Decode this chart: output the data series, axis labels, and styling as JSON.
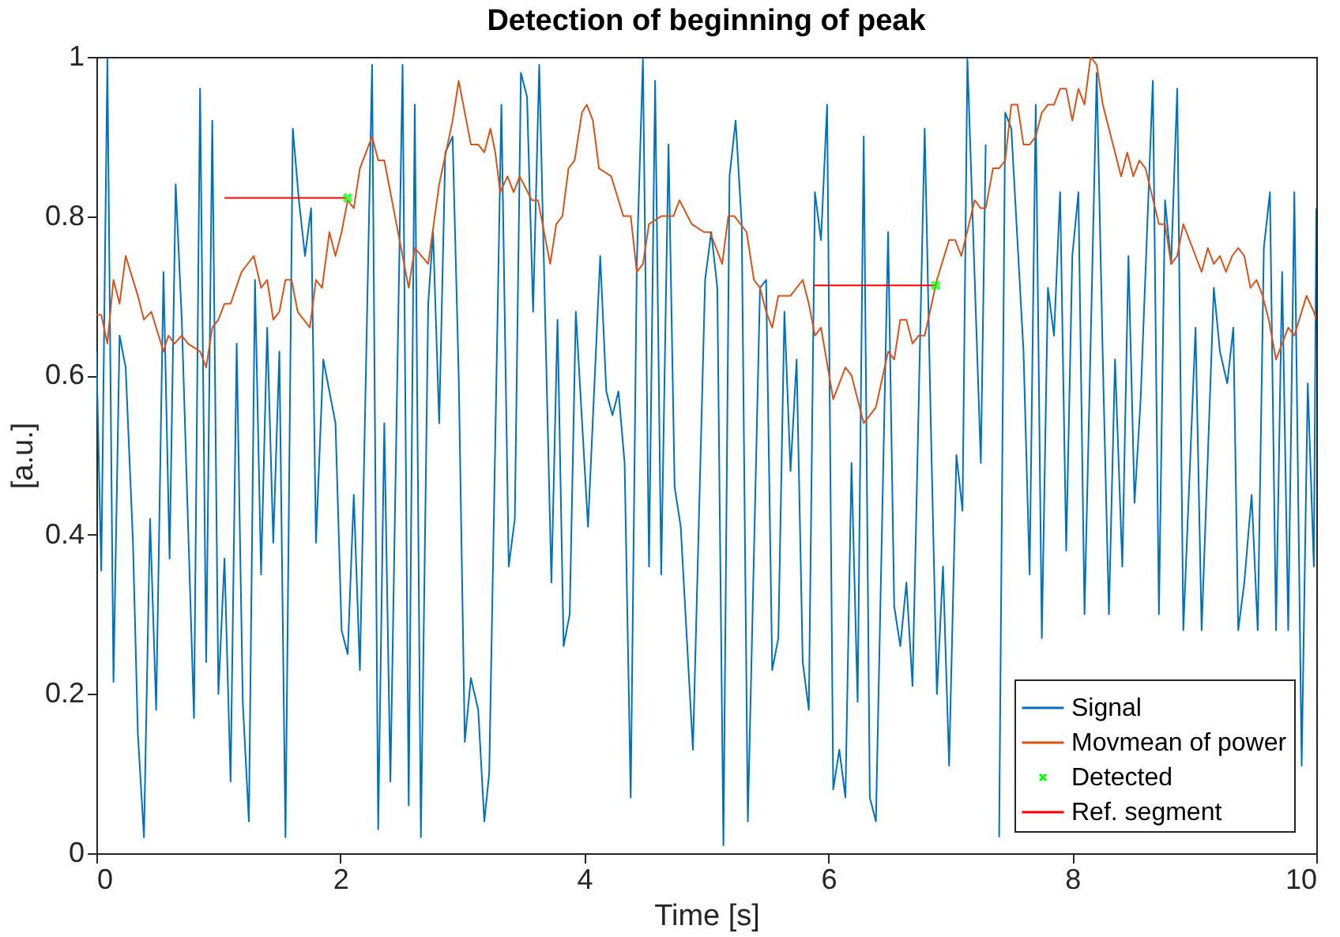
{
  "chart_data": {
    "type": "line",
    "title": "Detection of beginning of peak",
    "xlabel": "Time [s]",
    "ylabel": "[a.u.]",
    "xlim": [
      0,
      10
    ],
    "ylim": [
      0,
      1
    ],
    "xticks": [
      0,
      2,
      4,
      6,
      8,
      10
    ],
    "yticks": [
      0,
      0.2,
      0.4,
      0.6,
      0.8,
      1
    ],
    "grid": false,
    "legend": "bottom right",
    "series": [
      {
        "name": "Signal",
        "color": "#0072bd",
        "x": [
          0,
          0.04,
          0.09,
          0.14,
          0.19,
          0.24,
          0.3,
          0.34,
          0.39,
          0.44,
          0.49,
          0.55,
          0.6,
          0.65,
          0.7,
          0.8,
          0.85,
          0.9,
          0.95,
          1.0,
          1.05,
          1.1,
          1.15,
          1.2,
          1.25,
          1.3,
          1.35,
          1.4,
          1.45,
          1.5,
          1.55,
          1.61,
          1.66,
          1.71,
          1.76,
          1.8,
          1.86,
          1.96,
          2.01,
          2.06,
          2.11,
          2.16,
          2.26,
          2.31,
          2.36,
          2.41,
          2.51,
          2.56,
          2.61,
          2.66,
          2.72,
          2.76,
          2.81,
          2.86,
          2.92,
          2.97,
          3.02,
          3.07,
          3.13,
          3.18,
          3.22,
          3.32,
          3.38,
          3.43,
          3.48,
          3.53,
          3.58,
          3.63,
          3.73,
          3.78,
          3.83,
          3.88,
          3.93,
          4.03,
          4.13,
          4.18,
          4.23,
          4.28,
          4.33,
          4.38,
          4.43,
          4.48,
          4.53,
          4.58,
          4.63,
          4.69,
          4.74,
          4.79,
          4.89,
          4.99,
          5.04,
          5.09,
          5.14,
          5.19,
          5.24,
          5.29,
          5.34,
          5.44,
          5.49,
          5.54,
          5.59,
          5.64,
          5.69,
          5.74,
          5.79,
          5.84,
          5.89,
          5.94,
          5.99,
          6.04,
          6.09,
          6.14,
          6.19,
          6.24,
          6.29,
          6.34,
          6.39,
          6.49,
          6.54,
          6.59,
          6.64,
          6.69,
          6.79,
          6.84,
          6.89,
          6.94,
          6.99,
          7.05,
          7.1,
          7.14,
          7.25,
          7.29,
          7.35,
          7.4,
          7.45,
          7.5,
          7.6,
          7.65,
          7.7,
          7.75,
          7.8,
          7.85,
          7.9,
          7.95,
          8.0,
          8.05,
          8.1,
          8.2,
          8.25,
          8.3,
          8.35,
          8.41,
          8.46,
          8.51,
          8.56,
          8.66,
          8.71,
          8.76,
          8.81,
          8.86,
          8.91,
          9.01,
          9.06,
          9.16,
          9.21,
          9.27,
          9.32,
          9.36,
          9.41,
          9.47,
          9.52,
          9.57,
          9.62,
          9.67,
          9.72,
          9.77,
          9.82,
          9.88,
          9.93,
          9.98,
          10.0
        ],
        "values": [
          0.63,
          0.355,
          0.997,
          0.215,
          0.65,
          0.61,
          0.39,
          0.15,
          0.02,
          0.42,
          0.18,
          0.73,
          0.37,
          0.84,
          0.67,
          0.17,
          0.96,
          0.24,
          0.92,
          0.2,
          0.37,
          0.09,
          0.64,
          0.19,
          0.04,
          0.72,
          0.35,
          0.66,
          0.39,
          0.63,
          0.02,
          0.91,
          0.82,
          0.75,
          0.81,
          0.39,
          0.62,
          0.54,
          0.28,
          0.25,
          0.45,
          0.23,
          0.99,
          0.03,
          0.54,
          0.09,
          0.99,
          0.06,
          0.94,
          0.02,
          0.69,
          0.78,
          0.54,
          0.88,
          0.9,
          0.6,
          0.14,
          0.22,
          0.18,
          0.04,
          0.1,
          0.94,
          0.36,
          0.42,
          0.98,
          0.95,
          0.68,
          0.99,
          0.34,
          0.67,
          0.26,
          0.3,
          0.68,
          0.41,
          0.75,
          0.58,
          0.55,
          0.58,
          0.49,
          0.07,
          0.74,
          0.997,
          0.36,
          0.97,
          0.35,
          0.89,
          0.46,
          0.41,
          0.13,
          0.72,
          0.78,
          0.71,
          0.01,
          0.85,
          0.92,
          0.79,
          0.04,
          0.71,
          0.72,
          0.23,
          0.27,
          0.68,
          0.48,
          0.62,
          0.24,
          0.18,
          0.83,
          0.77,
          0.94,
          0.08,
          0.13,
          0.07,
          0.49,
          0.19,
          0.9,
          0.07,
          0.04,
          0.78,
          0.31,
          0.26,
          0.34,
          0.21,
          0.91,
          0.54,
          0.2,
          0.36,
          0.11,
          0.5,
          0.43,
          0.997,
          0.49,
          0.89,
          null,
          0.02,
          0.93,
          0.91,
          0.63,
          0.35,
          0.94,
          0.27,
          0.71,
          0.65,
          0.83,
          0.38,
          0.75,
          0.83,
          0.3,
          0.98,
          0.62,
          0.3,
          0.62,
          0.36,
          0.75,
          0.44,
          0.57,
          0.97,
          0.3,
          0.82,
          0.74,
          0.96,
          0.28,
          0.66,
          0.28,
          0.71,
          0.63,
          0.59,
          0.66,
          0.28,
          0.34,
          0.45,
          0.28,
          0.76,
          0.83,
          0.28,
          0.73,
          0.28,
          0.83,
          0.11,
          0.59,
          0.36,
          0.81
        ]
      },
      {
        "name": "Movmean of power",
        "color": "#d95319",
        "x": [
          0,
          0.04,
          0.09,
          0.14,
          0.19,
          0.24,
          0.34,
          0.39,
          0.45,
          0.55,
          0.59,
          0.64,
          0.7,
          0.75,
          0.85,
          0.9,
          0.95,
          1.0,
          1.05,
          1.1,
          1.19,
          1.29,
          1.35,
          1.4,
          1.45,
          1.5,
          1.55,
          1.6,
          1.65,
          1.7,
          1.75,
          1.8,
          1.85,
          1.91,
          1.96,
          2.01,
          2.06,
          2.11,
          2.16,
          2.26,
          2.31,
          2.36,
          2.46,
          2.56,
          2.61,
          2.72,
          2.81,
          2.92,
          2.97,
          3.07,
          3.13,
          3.18,
          3.23,
          3.27,
          3.31,
          3.37,
          3.42,
          3.47,
          3.57,
          3.62,
          3.72,
          3.77,
          3.82,
          3.87,
          3.92,
          3.98,
          4.02,
          4.07,
          4.12,
          4.22,
          4.32,
          4.38,
          4.43,
          4.48,
          4.53,
          4.63,
          4.73,
          4.78,
          4.88,
          4.98,
          5.03,
          5.13,
          5.18,
          5.23,
          5.33,
          5.39,
          5.44,
          5.49,
          5.54,
          5.59,
          5.69,
          5.79,
          5.84,
          5.89,
          5.94,
          6.04,
          6.14,
          6.19,
          6.29,
          6.39,
          6.49,
          6.54,
          6.59,
          6.64,
          6.69,
          6.74,
          6.79,
          6.89,
          6.99,
          7.04,
          7.09,
          7.2,
          7.25,
          7.29,
          7.35,
          7.4,
          7.45,
          7.5,
          7.55,
          7.6,
          7.65,
          7.7,
          7.75,
          7.8,
          7.85,
          7.9,
          7.95,
          8.0,
          8.05,
          8.1,
          8.15,
          8.2,
          8.25,
          8.3,
          8.4,
          8.45,
          8.5,
          8.55,
          8.6,
          8.71,
          8.76,
          8.81,
          8.86,
          8.91,
          9.01,
          9.06,
          9.11,
          9.16,
          9.21,
          9.26,
          9.31,
          9.36,
          9.41,
          9.46,
          9.51,
          9.56,
          9.61,
          9.67,
          9.72,
          9.77,
          9.82,
          9.92,
          9.98,
          10.0
        ],
        "values": [
          0.676,
          0.676,
          0.64,
          0.72,
          0.69,
          0.75,
          0.7,
          0.67,
          0.68,
          0.63,
          0.65,
          0.64,
          0.65,
          0.64,
          0.63,
          0.61,
          0.66,
          0.67,
          0.69,
          0.69,
          0.73,
          0.75,
          0.71,
          0.72,
          0.67,
          0.68,
          0.72,
          0.72,
          0.68,
          0.67,
          0.66,
          0.72,
          0.71,
          0.78,
          0.75,
          0.78,
          0.82,
          0.81,
          0.86,
          0.9,
          0.87,
          0.87,
          0.79,
          0.71,
          0.76,
          0.74,
          0.84,
          0.92,
          0.97,
          0.89,
          0.89,
          0.88,
          0.91,
          0.88,
          0.83,
          0.85,
          0.83,
          0.85,
          0.82,
          0.82,
          0.74,
          0.79,
          0.8,
          0.86,
          0.87,
          0.93,
          0.94,
          0.92,
          0.86,
          0.85,
          0.8,
          0.8,
          0.73,
          0.74,
          0.79,
          0.8,
          0.8,
          0.82,
          0.79,
          0.78,
          0.78,
          0.74,
          0.8,
          0.8,
          0.78,
          0.72,
          0.71,
          0.68,
          0.66,
          0.7,
          0.7,
          0.72,
          0.69,
          0.65,
          0.66,
          0.57,
          0.61,
          0.6,
          0.54,
          0.56,
          0.63,
          0.62,
          0.67,
          0.67,
          0.64,
          0.65,
          0.65,
          0.72,
          0.77,
          0.77,
          0.75,
          0.82,
          0.81,
          0.81,
          0.86,
          0.86,
          0.87,
          0.94,
          0.94,
          0.89,
          0.89,
          0.9,
          0.93,
          0.94,
          0.94,
          0.96,
          0.96,
          0.92,
          0.96,
          0.94,
          1.0,
          0.99,
          0.94,
          0.91,
          0.85,
          0.88,
          0.85,
          0.87,
          0.86,
          0.79,
          0.79,
          0.74,
          0.75,
          0.79,
          0.75,
          0.73,
          0.76,
          0.74,
          0.75,
          0.73,
          0.75,
          0.76,
          0.75,
          0.71,
          0.72,
          0.7,
          0.67,
          0.62,
          0.64,
          0.66,
          0.65,
          0.7,
          0.68,
          0.67
        ]
      },
      {
        "name": "Detected",
        "type": "scatter",
        "marker": "cross",
        "color": "#00ff00",
        "x": [
          2.06,
          6.88
        ],
        "values": [
          0.823,
          0.713
        ]
      },
      {
        "name": "Ref. segment",
        "color": "#ff0000",
        "x": [
          1.05,
          2.05,
          4.0,
          5.88,
          6.88
        ],
        "values": [
          0.823,
          0.823,
          null,
          0.713,
          0.713
        ]
      }
    ]
  }
}
